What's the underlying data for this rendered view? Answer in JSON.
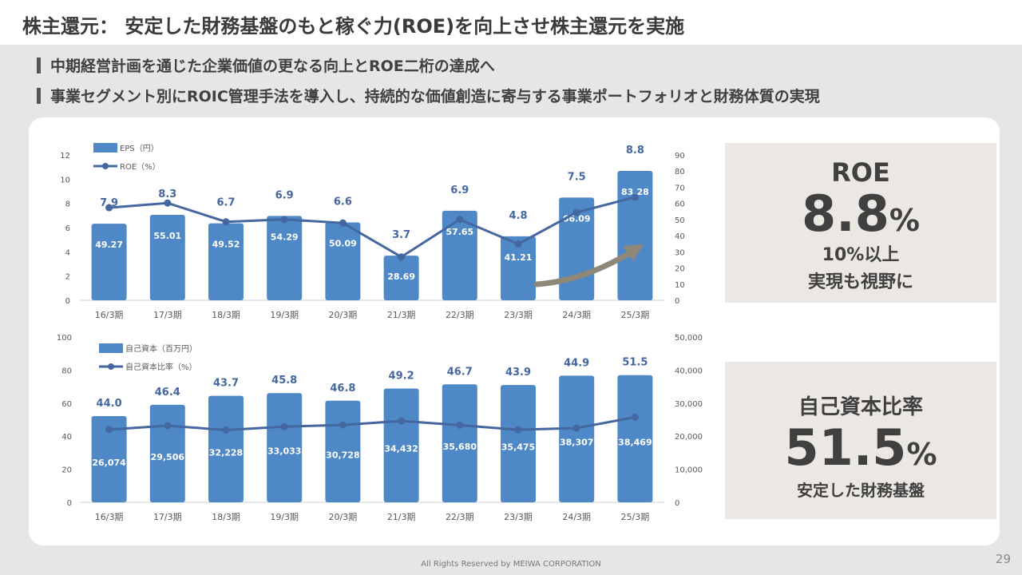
{
  "page": {
    "title": "株主還元： 安定した財務基盤のもと稼ぐ力(ROE)を向上させ株主還元を実施",
    "bullets": [
      "中期経営計画を通じた企業価値の更なる向上とROE二桁の達成へ",
      "事業セグメント別にROIC管理手法を導入し、持続的な価値創造に寄与する事業ポートフォリオと財務体質の実現"
    ],
    "footer": "All Rights Reserved by MEIWA CORPORATION",
    "page_number": "29"
  },
  "kpi_roe": {
    "label": "ROE",
    "value": "8.8",
    "unit": "%",
    "sub1": "10%以上",
    "sub2": "実現も視野に"
  },
  "kpi_equity": {
    "label": "自己資本比率",
    "value": "51.5",
    "unit": "%",
    "sub": "安定した財務基盤"
  },
  "colors": {
    "bar": "#4f88c6",
    "line": "#44679f",
    "arrow": "#8f8878",
    "kpi_bg": "#ebe7e2"
  },
  "chart_data": [
    {
      "type": "bar",
      "title": "",
      "categories": [
        "16/3期",
        "17/3期",
        "18/3期",
        "19/3期",
        "20/3期",
        "21/3期",
        "22/3期",
        "23/3期",
        "24/3期",
        "25/3期"
      ],
      "series": [
        {
          "name": "EPS（円）",
          "type": "bar",
          "axis": "left",
          "values": [
            49.27,
            55.01,
            49.52,
            54.29,
            50.09,
            28.69,
            57.65,
            41.21,
            66.09,
            83.28
          ]
        },
        {
          "name": "ROE（%）",
          "type": "line",
          "axis": "right",
          "values": [
            7.9,
            8.3,
            6.7,
            6.9,
            6.6,
            3.7,
            6.9,
            4.8,
            7.5,
            8.8
          ]
        }
      ],
      "left_axis": {
        "min": 0,
        "max": 12,
        "ticks": [
          "0",
          "2",
          "4",
          "6",
          "8",
          "10",
          "12"
        ]
      },
      "right_axis": {
        "min": 0,
        "max": 90,
        "ticks": [
          "0",
          "10",
          "20",
          "30",
          "40",
          "50",
          "60",
          "70",
          "80",
          "90"
        ]
      },
      "bar_scale_max": 92,
      "line_scale_max": 12.2,
      "legend": "top-left"
    },
    {
      "type": "bar",
      "title": "",
      "categories": [
        "16/3期",
        "17/3期",
        "18/3期",
        "19/3期",
        "20/3期",
        "21/3期",
        "22/3期",
        "23/3期",
        "24/3期",
        "25/3期"
      ],
      "series": [
        {
          "name": "自己資本（百万円）",
          "type": "bar",
          "axis": "right",
          "values": [
            26074,
            29506,
            32228,
            33033,
            30728,
            34432,
            35680,
            35475,
            38307,
            38469
          ]
        },
        {
          "name": "自己資本比率（%）",
          "type": "line",
          "axis": "left",
          "values": [
            44.0,
            46.4,
            43.7,
            45.8,
            46.8,
            49.2,
            46.7,
            43.9,
            44.9,
            51.5
          ]
        }
      ],
      "bar_labels": [
        "26,074",
        "29,506",
        "32,228",
        "33,033",
        "30,728",
        "34,432",
        "35,680",
        "35,475",
        "38,307",
        "38,469"
      ],
      "line_labels": [
        "44.0",
        "46.4",
        "43.7",
        "45.8",
        "46.8",
        "49.2",
        "46.7",
        "43.9",
        "44.9",
        "51.5"
      ],
      "left_axis": {
        "min": 0,
        "max": 100,
        "ticks": [
          "0",
          "20",
          "40",
          "60",
          "80",
          "100"
        ]
      },
      "right_axis": {
        "min": 0,
        "max": 50000,
        "ticks": [
          "0",
          "10,000",
          "20,000",
          "30,000",
          "40,000",
          "50,000"
        ]
      },
      "legend": "top-left"
    }
  ]
}
